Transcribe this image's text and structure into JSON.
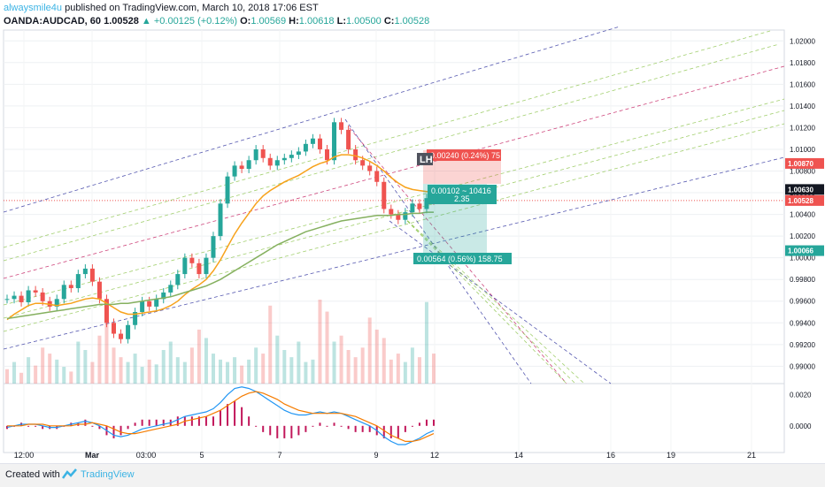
{
  "header": {
    "author": "alwaysmile4u",
    "published": "published on TradingView.com, March 10, 2018 17:06 EST",
    "symbol": "OANDA:AUDCAD, 60",
    "last": "1.00528",
    "change": "▲ +0.00125 (+0.12%)",
    "o_label": "O:",
    "o_value": "1.00569",
    "h_label": "H:",
    "h_value": "1.00618",
    "l_label": "L:",
    "l_value": "1.00500",
    "c_label": "C:",
    "c_value": "1.00528"
  },
  "footer": {
    "created_label": "Created with",
    "brand": "TradingView"
  },
  "colors": {
    "up": "#26a69a",
    "down": "#ef5350",
    "ma_fast": "#f7a21b",
    "ma_slow": "#85b05f",
    "channel_blue": "#2a2e9c",
    "channel_red": "#c2185b",
    "fan_green": "#8bc34a",
    "macd": "#2196f3",
    "signal": "#f57c00",
    "hist": "#c2185b"
  },
  "chart_data": {
    "type": "candlestick",
    "price_axis": {
      "range": [
        0.9884,
        1.021
      ],
      "ticks": [
        "1.02000",
        "1.01800",
        "1.01600",
        "1.01400",
        "1.01200",
        "1.01000",
        "1.00800",
        "1.00600",
        "1.00400",
        "1.00200",
        "1.00000",
        "0.99800",
        "0.99600",
        "0.99400",
        "0.99200",
        "0.99000"
      ],
      "labels": [
        {
          "value": 1.0087,
          "text": "1.00870",
          "color": "#ef5350"
        },
        {
          "value": 1.0063,
          "text": "1.00630",
          "color": "#131722"
        },
        {
          "value": 1.00528,
          "text": "1.00528",
          "color": "#ef5350"
        },
        {
          "value": 1.00066,
          "text": "1.00066",
          "color": "#26a69a"
        }
      ]
    },
    "time_axis": {
      "ticks": [
        "12:00",
        "Mar",
        "03:00",
        "5",
        "7",
        "9",
        "12",
        "14",
        "16",
        "19",
        "21"
      ]
    },
    "price_series": [
      0.9962,
      0.9965,
      0.9959,
      0.997,
      0.9968,
      0.996,
      0.9955,
      0.9962,
      0.9975,
      0.9972,
      0.9985,
      0.999,
      0.9978,
      0.9962,
      0.994,
      0.993,
      0.9925,
      0.9938,
      0.995,
      0.996,
      0.9955,
      0.9962,
      0.9968,
      0.9975,
      0.9985,
      1.0,
      0.9995,
      0.9985,
      1.0,
      1.002,
      1.005,
      1.0075,
      1.0085,
      1.0082,
      1.009,
      1.01,
      1.0092,
      1.0085,
      1.009,
      1.0092,
      1.0095,
      1.0098,
      1.0105,
      1.011,
      1.01,
      1.009,
      1.0125,
      1.0118,
      1.01,
      1.009,
      1.0085,
      1.008,
      1.007,
      1.0045,
      1.004,
      1.0035,
      1.0042,
      1.005,
      1.0045,
      1.0055,
      1.00528
    ],
    "ma_fast_series": [
      0.9943,
      0.9948,
      0.9952,
      0.9956,
      0.9958,
      0.9958,
      0.9957,
      0.9956,
      0.9957,
      0.9958,
      0.996,
      0.9962,
      0.9963,
      0.9962,
      0.9958,
      0.9954,
      0.995,
      0.9948,
      0.9948,
      0.9949,
      0.995,
      0.9951,
      0.9953,
      0.9956,
      0.996,
      0.9966,
      0.9971,
      0.9975,
      0.998,
      0.9988,
      0.9998,
      1.001,
      1.0022,
      1.0032,
      1.0041,
      1.005,
      1.0057,
      1.0062,
      1.0066,
      1.007,
      1.0073,
      1.0076,
      1.008,
      1.0084,
      1.0087,
      1.0089,
      1.0093,
      1.0095,
      1.0095,
      1.0094,
      1.0092,
      1.0089,
      1.0085,
      1.008,
      1.0074,
      1.0069,
      1.0065,
      1.0063,
      1.0062,
      1.0061,
      1.0061
    ],
    "ma_slow_series": [
      0.9944,
      0.9945,
      0.9946,
      0.9947,
      0.9948,
      0.9949,
      0.995,
      0.9951,
      0.9952,
      0.9953,
      0.9954,
      0.9955,
      0.9956,
      0.9957,
      0.9957,
      0.9957,
      0.9958,
      0.9958,
      0.9959,
      0.996,
      0.9961,
      0.9962,
      0.9963,
      0.9964,
      0.9966,
      0.9968,
      0.997,
      0.9972,
      0.9974,
      0.9977,
      0.998,
      0.9984,
      0.9988,
      0.9992,
      0.9996,
      1.0,
      1.0004,
      1.0008,
      1.0012,
      1.0015,
      1.0018,
      1.0021,
      1.0024,
      1.0026,
      1.0028,
      1.003,
      1.0032,
      1.0034,
      1.0035,
      1.0036,
      1.0037,
      1.0038,
      1.0039,
      1.0039,
      1.0039,
      1.004,
      1.004,
      1.0041,
      1.0041,
      1.0042,
      1.0042
    ],
    "volume_series": [
      12,
      18,
      9,
      22,
      15,
      30,
      25,
      20,
      14,
      10,
      35,
      28,
      18,
      40,
      55,
      30,
      22,
      18,
      25,
      14,
      20,
      16,
      28,
      35,
      22,
      18,
      30,
      45,
      38,
      25,
      20,
      18,
      22,
      15,
      20,
      30,
      25,
      65,
      40,
      28,
      22,
      35,
      18,
      20,
      70,
      60,
      35,
      40,
      28,
      22,
      30,
      55,
      45,
      38,
      20,
      25,
      18,
      30,
      22,
      68,
      25
    ],
    "macd_axis": {
      "ticks": [
        "0.0020",
        "0.0000"
      ],
      "range": [
        -0.0016,
        0.0026
      ]
    },
    "macd_series": [
      -0.0001,
      0.0,
      0.0001,
      0.0001,
      0.0001,
      0.0,
      -0.0001,
      -0.0001,
      0.0,
      0.0001,
      0.0002,
      0.0003,
      0.0002,
      0.0,
      -0.0003,
      -0.0006,
      -0.0007,
      -0.0006,
      -0.0004,
      -0.0002,
      -0.0001,
      0.0,
      0.0001,
      0.0002,
      0.0004,
      0.0006,
      0.0007,
      0.0008,
      0.0009,
      0.0011,
      0.0015,
      0.002,
      0.0024,
      0.0025,
      0.0024,
      0.0022,
      0.0019,
      0.0016,
      0.0013,
      0.001,
      0.0008,
      0.0007,
      0.0007,
      0.0008,
      0.0009,
      0.0008,
      0.0009,
      0.0008,
      0.0006,
      0.0004,
      0.0002,
      0.0,
      -0.0003,
      -0.0007,
      -0.001,
      -0.0012,
      -0.0012,
      -0.001,
      -0.0008,
      -0.0005,
      -0.0003
    ],
    "signal_series": [
      0.0,
      0.0,
      0.0,
      0.0001,
      0.0001,
      0.0001,
      0.0,
      0.0,
      0.0,
      0.0,
      0.0001,
      0.0001,
      0.0002,
      0.0001,
      0.0,
      -0.0002,
      -0.0004,
      -0.0005,
      -0.0005,
      -0.0004,
      -0.0003,
      -0.0002,
      -0.0001,
      0.0,
      0.0001,
      0.0003,
      0.0004,
      0.0005,
      0.0006,
      0.0008,
      0.001,
      0.0013,
      0.0016,
      0.0019,
      0.0021,
      0.0022,
      0.0021,
      0.0019,
      0.0017,
      0.0014,
      0.0012,
      0.001,
      0.0009,
      0.0008,
      0.0008,
      0.0008,
      0.0008,
      0.0008,
      0.0007,
      0.0006,
      0.0004,
      0.0002,
      0.0,
      -0.0003,
      -0.0006,
      -0.0008,
      -0.001,
      -0.001,
      -0.0009,
      -0.0007,
      -0.0005
    ],
    "position_tool": {
      "target_text": "0.00240 (0.24%) 75",
      "risk_text": "0.00102 ~ 10416",
      "ratio_text": "2.35",
      "stop_text": "0.00564 (0.56%) 158.75"
    },
    "annotation": "LH"
  }
}
